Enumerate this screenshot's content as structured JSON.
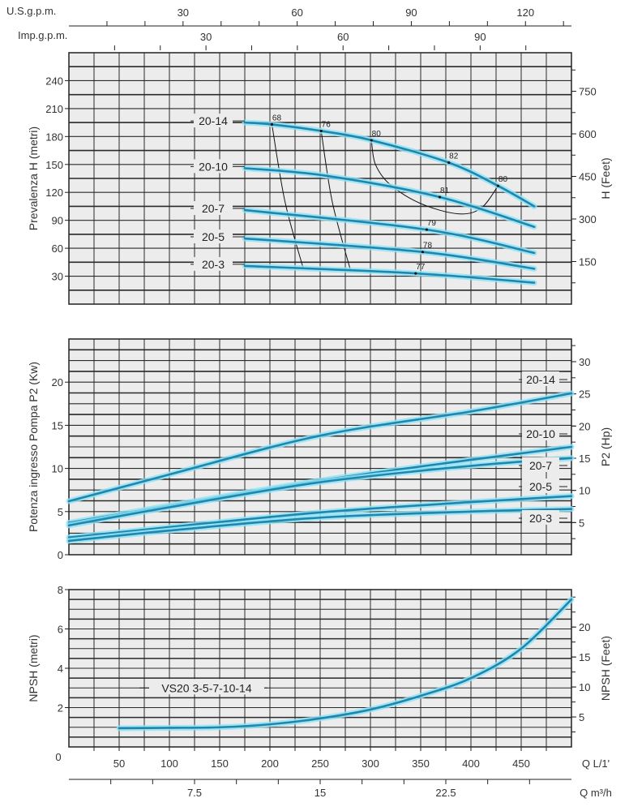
{
  "chart_data": [
    {
      "type": "line",
      "title": "",
      "xlabel": "Q L/1'",
      "ylabel": "Prevalenza H (metri)",
      "ylabel_right": "H (Feet)",
      "xlim": [
        0,
        500
      ],
      "ylim": [
        0,
        270
      ],
      "yticks": [
        30,
        60,
        90,
        120,
        150,
        180,
        210,
        240
      ],
      "yticks_right": [
        150,
        300,
        450,
        600,
        750
      ],
      "grid": true,
      "top_axes": [
        {
          "label": "U.S.g.p.m.",
          "ticks": [
            30,
            60,
            90,
            120
          ]
        },
        {
          "label": "Imp.g.p.m.",
          "ticks": [
            30,
            60,
            90
          ]
        }
      ],
      "series": [
        {
          "name": "20-14",
          "x": [
            175,
            202,
            251,
            301,
            378,
            427,
            463
          ],
          "y": [
            195,
            193,
            186,
            176,
            152,
            127,
            105
          ]
        },
        {
          "name": "20-10",
          "x": [
            175,
            255,
            369,
            463
          ],
          "y": [
            146,
            138,
            115,
            83
          ]
        },
        {
          "name": "20-7",
          "x": [
            175,
            356,
            463
          ],
          "y": [
            101,
            80,
            55
          ]
        },
        {
          "name": "20-5",
          "x": [
            175,
            352,
            463
          ],
          "y": [
            70.5,
            56,
            38
          ]
        },
        {
          "name": "20-3",
          "x": [
            175,
            345,
            463
          ],
          "y": [
            41,
            33,
            23
          ]
        }
      ],
      "efficiency_curves": [
        {
          "x": [
            202,
            215,
            233
          ],
          "y": [
            193,
            110,
            39
          ]
        },
        {
          "x": [
            251,
            262,
            280
          ],
          "y": [
            186,
            110,
            37
          ]
        },
        {
          "x": [
            301,
            305,
            320,
            350,
            387,
            410,
            427
          ],
          "y": [
            176,
            150,
            128,
            108,
            97,
            103,
            127
          ]
        }
      ],
      "efficiency_labels": [
        {
          "text": "68",
          "x": 202,
          "y": 193
        },
        {
          "text": "76",
          "x": 251,
          "y": 186
        },
        {
          "text": "80",
          "x": 301,
          "y": 176
        },
        {
          "text": "82",
          "x": 378,
          "y": 152
        },
        {
          "text": "80",
          "x": 427,
          "y": 127
        },
        {
          "text": "81",
          "x": 369,
          "y": 115
        },
        {
          "text": "79",
          "x": 356,
          "y": 80
        },
        {
          "text": "78",
          "x": 352,
          "y": 56
        },
        {
          "text": "77",
          "x": 345,
          "y": 33
        }
      ]
    },
    {
      "type": "line",
      "title": "",
      "xlabel": "Q L/1'",
      "ylabel": "Potenza ingresso Pompa P2 (Kw)",
      "ylabel_right": "P2 (Hp)",
      "xlim": [
        0,
        500
      ],
      "ylim": [
        0,
        25
      ],
      "yticks": [
        0,
        5,
        10,
        15,
        20
      ],
      "yticks_right": [
        5,
        10,
        15,
        20,
        25,
        30
      ],
      "grid": true,
      "series": [
        {
          "name": "20-14",
          "x": [
            0,
            100,
            250,
            400,
            500
          ],
          "y": [
            6.2,
            9.3,
            13.8,
            16.6,
            18.7
          ]
        },
        {
          "name": "20-10",
          "x": [
            0,
            100,
            250,
            400,
            500
          ],
          "y": [
            3.7,
            5.7,
            8.6,
            11.0,
            12.5
          ]
        },
        {
          "name": "20-7",
          "x": [
            0,
            100,
            250,
            400,
            500
          ],
          "y": [
            3.4,
            5.5,
            8.4,
            10.3,
            11.2
          ]
        },
        {
          "name": "20-5",
          "x": [
            0,
            100,
            250,
            400,
            500
          ],
          "y": [
            2.0,
            3.2,
            4.9,
            6.1,
            6.8
          ]
        },
        {
          "name": "20-3",
          "x": [
            0,
            100,
            250,
            400,
            500
          ],
          "y": [
            1.6,
            2.8,
            4.3,
            5.0,
            5.3
          ]
        }
      ]
    },
    {
      "type": "line",
      "title": "",
      "xlabel": "Q L/1'",
      "xlabel_secondary": "Q m³/h",
      "ylabel": "NPSH (metri)",
      "ylabel_right": "NPSH (Feet)",
      "xlim": [
        0,
        500
      ],
      "ylim": [
        0,
        8
      ],
      "xticks": [
        0,
        50,
        100,
        150,
        200,
        250,
        300,
        350,
        400,
        450
      ],
      "xticks_secondary": [
        7.5,
        15,
        22.5
      ],
      "yticks": [
        2,
        4,
        6,
        8
      ],
      "yticks_right": [
        5,
        10,
        15,
        20
      ],
      "grid": true,
      "annotation": "VS20 3-5-7-10-14",
      "series": [
        {
          "x": [
            50,
            100,
            150,
            200,
            250,
            300,
            350,
            400,
            450,
            500
          ],
          "y": [
            0.95,
            0.97,
            1.0,
            1.15,
            1.45,
            1.9,
            2.6,
            3.5,
            5.0,
            7.5
          ]
        }
      ]
    }
  ],
  "colors": {
    "curve": "#1f86b0",
    "curve_glow": "#8fe3f5",
    "grid": "#2a2a2a",
    "plot_bg": "#ececec"
  }
}
